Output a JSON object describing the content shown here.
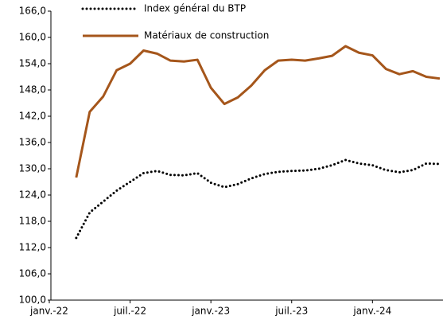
{
  "chart_data": {
    "type": "line",
    "categories": [
      "janv.-22",
      null,
      null,
      null,
      null,
      null,
      "juil.-22",
      null,
      null,
      null,
      null,
      null,
      "janv.-23",
      null,
      null,
      null,
      null,
      null,
      "juil.-23",
      null,
      null,
      null,
      null,
      null,
      "janv.-24",
      null,
      null,
      null,
      null,
      null
    ],
    "series": [
      {
        "name": "Index général du BTP",
        "color": "#000000",
        "dash": "dotted",
        "values": [
          null,
          null,
          114.2,
          120.0,
          122.5,
          125.0,
          127.0,
          129.0,
          129.5,
          128.6,
          128.5,
          129.0,
          126.8,
          125.8,
          126.5,
          127.8,
          128.8,
          129.3,
          129.5,
          129.6,
          130.0,
          130.8,
          132.0,
          131.2,
          130.8,
          129.7,
          129.2,
          129.7,
          131.2,
          131.1
        ]
      },
      {
        "name": "Matériaux de construction",
        "color": "#a5561b",
        "dash": "solid",
        "values": [
          null,
          null,
          128.0,
          143.0,
          146.5,
          152.5,
          154.0,
          157.0,
          156.3,
          154.7,
          154.5,
          154.9,
          148.5,
          144.8,
          146.3,
          149.0,
          152.5,
          154.7,
          154.9,
          154.7,
          155.2,
          155.8,
          158.0,
          156.5,
          155.9,
          152.8,
          151.6,
          152.3,
          151.0,
          150.6
        ]
      }
    ],
    "ylim": [
      100,
      166
    ],
    "yticks": [
      {
        "value": 100,
        "label": "100,0"
      },
      {
        "value": 106,
        "label": "106,0"
      },
      {
        "value": 112,
        "label": "112,0"
      },
      {
        "value": 118,
        "label": "118,0"
      },
      {
        "value": 124,
        "label": "124,0"
      },
      {
        "value": 130,
        "label": "130,0"
      },
      {
        "value": 136,
        "label": "136,0"
      },
      {
        "value": 142,
        "label": "142,0"
      },
      {
        "value": 148,
        "label": "148,0"
      },
      {
        "value": 154,
        "label": "154,0"
      },
      {
        "value": 160,
        "label": "160,0"
      },
      {
        "value": 166,
        "label": "166,0"
      }
    ],
    "grid": false
  }
}
